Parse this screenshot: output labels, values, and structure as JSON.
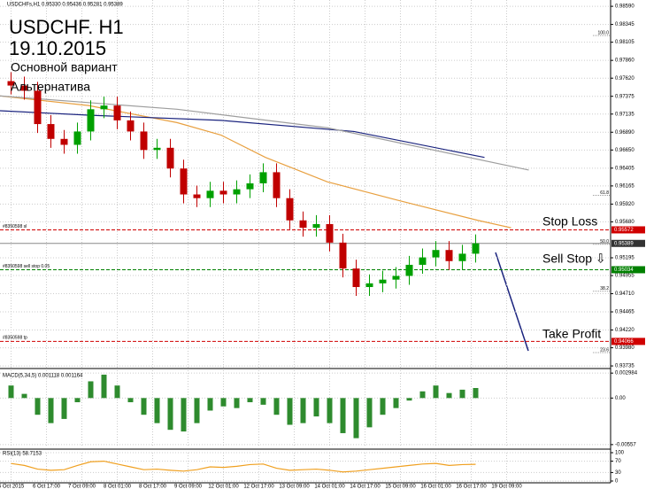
{
  "header": {
    "symbol_info": "USDCHFs,H1  0.95330 0.95436 0.95281 0.95389",
    "title": "USDCHF. H1",
    "date": "19.10.2015",
    "legend": [
      {
        "name": "Основной вариант",
        "color": "#1a237e"
      },
      {
        "name": "Альтернатива",
        "color": "#e8731a"
      }
    ]
  },
  "chart_data": [
    {
      "type": "candlestick",
      "grid": true,
      "up_color": "#00a000",
      "down_color": "#c00000",
      "xlim": [
        -2,
        274
      ],
      "xticks": [
        {
          "value": 3,
          "label": "6 Oct 2015"
        },
        {
          "value": 19,
          "label": "6 Oct 17:00"
        },
        {
          "value": 35,
          "label": "7 Oct 09:00"
        },
        {
          "value": 51,
          "label": "8 Oct 01:00"
        },
        {
          "value": 67,
          "label": "8 Oct 17:00"
        },
        {
          "value": 83,
          "label": "9 Oct 09:00"
        },
        {
          "value": 99,
          "label": "12 Oct 01:00"
        },
        {
          "value": 115,
          "label": "12 Oct 17:00"
        },
        {
          "value": 131,
          "label": "13 Oct 09:00"
        },
        {
          "value": 147,
          "label": "14 Oct 01:00"
        },
        {
          "value": 163,
          "label": "14 Oct 17:00"
        },
        {
          "value": 179,
          "label": "15 Oct 09:00"
        },
        {
          "value": 195,
          "label": "16 Oct 01:00"
        },
        {
          "value": 211,
          "label": "16 Oct 17:00"
        },
        {
          "value": 227,
          "label": "19 Oct 09:00"
        }
      ],
      "ylim": [
        0.937,
        0.98675
      ],
      "yticks": [
        {
          "value": 0.9859,
          "label": "0.98590"
        },
        0.98345,
        0.98105,
        {
          "value": 0.9786,
          "label": "0.97860"
        },
        {
          "value": 0.9762,
          "label": "0.97620"
        },
        0.97375,
        0.97135,
        {
          "value": 0.9689,
          "label": "0.96890"
        },
        {
          "value": 0.9665,
          "label": "0.96650"
        },
        0.96405,
        0.96165,
        {
          "value": 0.9592,
          "label": "0.95920"
        },
        {
          "value": 0.9568,
          "label": "0.95680"
        },
        0.95195,
        0.94955,
        {
          "value": 0.9471,
          "label": "0.94710"
        },
        0.94465,
        {
          "value": 0.9422,
          "label": "0.94220"
        },
        {
          "value": 0.9398,
          "label": "0.93980"
        },
        0.93735
      ],
      "x": [
        3,
        9,
        15,
        21,
        27,
        33,
        39,
        45,
        51,
        57,
        63,
        69,
        75,
        81,
        87,
        93,
        99,
        105,
        111,
        117,
        123,
        129,
        135,
        141,
        147,
        153,
        159,
        165,
        171,
        177,
        183,
        189,
        195,
        201,
        207,
        213
      ],
      "open": [
        0.9758,
        0.9752,
        0.9745,
        0.97,
        0.968,
        0.9672,
        0.969,
        0.972,
        0.9725,
        0.9705,
        0.969,
        0.9665,
        0.9668,
        0.964,
        0.9605,
        0.96,
        0.961,
        0.9605,
        0.9612,
        0.962,
        0.9635,
        0.96,
        0.957,
        0.956,
        0.9565,
        0.954,
        0.9505,
        0.948,
        0.9485,
        0.949,
        0.9495,
        0.951,
        0.952,
        0.953,
        0.9515,
        0.9525
      ],
      "high": [
        0.977,
        0.9764,
        0.9757,
        0.9712,
        0.9692,
        0.9702,
        0.9732,
        0.9737,
        0.9737,
        0.9717,
        0.9702,
        0.968,
        0.968,
        0.9652,
        0.9617,
        0.9622,
        0.9622,
        0.9624,
        0.9632,
        0.9647,
        0.9647,
        0.9612,
        0.9582,
        0.9577,
        0.9577,
        0.9552,
        0.9517,
        0.9497,
        0.9502,
        0.9507,
        0.9522,
        0.9532,
        0.9542,
        0.9542,
        0.9537,
        0.9551
      ],
      "low": [
        0.974,
        0.9733,
        0.9688,
        0.9668,
        0.966,
        0.966,
        0.9678,
        0.9708,
        0.9693,
        0.9678,
        0.9653,
        0.9653,
        0.9628,
        0.9593,
        0.9588,
        0.9588,
        0.9593,
        0.9593,
        0.96,
        0.9608,
        0.9588,
        0.9558,
        0.9548,
        0.9548,
        0.9528,
        0.9493,
        0.9468,
        0.9468,
        0.9473,
        0.9478,
        0.9483,
        0.9498,
        0.9508,
        0.9503,
        0.9503,
        0.9513
      ],
      "close": [
        0.9752,
        0.9745,
        0.97,
        0.968,
        0.9672,
        0.969,
        0.972,
        0.9725,
        0.9705,
        0.969,
        0.9665,
        0.9668,
        0.964,
        0.9605,
        0.96,
        0.961,
        0.9605,
        0.9612,
        0.962,
        0.9635,
        0.96,
        0.957,
        0.956,
        0.9565,
        0.954,
        0.9505,
        0.948,
        0.9485,
        0.949,
        0.9495,
        0.951,
        0.952,
        0.953,
        0.9515,
        0.9525,
        0.9539
      ],
      "moving_averages": [
        {
          "color": "#e8a040",
          "x": [
            -2,
            38,
            78,
            98,
            118,
            146,
            178,
            214,
            229
          ],
          "values": [
            0.9738,
            0.9725,
            0.9702,
            0.9685,
            0.9655,
            0.9622,
            0.9597,
            0.957,
            0.956
          ]
        },
        {
          "color": "#1a237e",
          "x": [
            -2,
            38,
            98,
            158,
            217
          ],
          "values": [
            0.9718,
            0.9712,
            0.9705,
            0.969,
            0.9655
          ]
        },
        {
          "color": "#9e9e9e",
          "x": [
            -2,
            78,
            146,
            237
          ],
          "values": [
            0.9738,
            0.972,
            0.9695,
            0.9638
          ]
        }
      ],
      "levels": [
        {
          "label": "#8350598 sl",
          "value": 0.95572,
          "color": "#d00000"
        },
        {
          "label": "#8350598 sell stop 0.05",
          "value": 0.95034,
          "color": "#008000"
        },
        {
          "label": "#8350598 tp",
          "value": 0.94066,
          "color": "#d00000"
        }
      ],
      "current_price": 0.95389,
      "fib_levels": [
        {
          "label": "100.0",
          "value": 0.98195
        },
        {
          "label": "61.8",
          "value": 0.96038
        },
        {
          "label": "50.0",
          "value": 0.95378
        },
        {
          "label": "38.2",
          "value": 0.94743
        },
        {
          "label": "23.6",
          "value": 0.93916
        }
      ],
      "annotations": [
        "Stop Loss",
        "Sell Stop ⇩",
        "Take Profit"
      ]
    },
    {
      "type": "histogram",
      "title": "MACD(5,34,5) 0.001118 0.001164",
      "color": "#2e8b2e",
      "ylim": [
        -0.0059,
        0.00332
      ],
      "yticks": [
        0.002984,
        {
          "value": 0,
          "label": "0.00"
        },
        -0.00557
      ],
      "values": [
        0.0015,
        0.0005,
        -0.002,
        -0.003,
        -0.0025,
        -0.0005,
        0.002,
        0.0028,
        0.0015,
        -0.0005,
        -0.002,
        -0.003,
        -0.0038,
        -0.004,
        -0.003,
        -0.0015,
        -0.001,
        -0.0012,
        -0.0005,
        -0.0008,
        -0.002,
        -0.0032,
        -0.003,
        -0.0022,
        -0.003,
        -0.0042,
        -0.0048,
        -0.0035,
        -0.002,
        -0.0012,
        -0.0003,
        0.0008,
        0.0015,
        0.0006,
        0.001,
        0.0012
      ]
    },
    {
      "type": "line",
      "title": "RSI(13) 58.7153",
      "color": "#f0a020",
      "ylim": [
        0,
        100
      ],
      "yticks": [
        100,
        70,
        30,
        0
      ],
      "values": [
        62,
        55,
        42,
        38,
        40,
        55,
        68,
        70,
        60,
        50,
        40,
        42,
        38,
        35,
        40,
        50,
        48,
        52,
        58,
        60,
        45,
        38,
        40,
        42,
        38,
        32,
        35,
        40,
        45,
        50,
        55,
        60,
        62,
        55,
        58,
        59
      ]
    }
  ]
}
